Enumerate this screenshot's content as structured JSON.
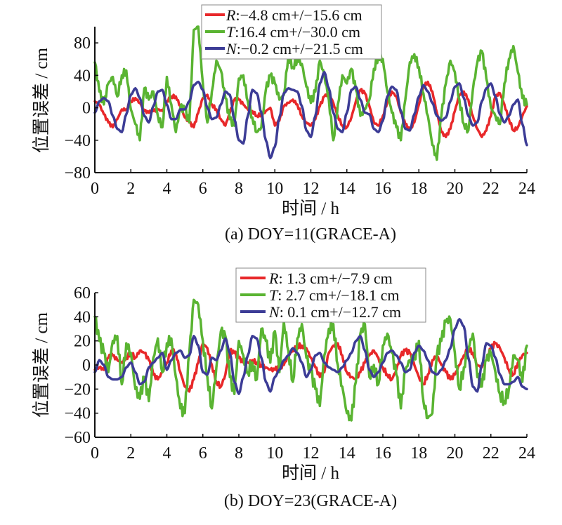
{
  "chart_data": [
    {
      "id": "a",
      "type": "line",
      "caption": "(a) DOY=11(GRACE-A)",
      "xlabel": "时间 / h",
      "ylabel": "位置误差 / cm",
      "xlim": [
        0,
        24
      ],
      "ylim": [
        -80,
        100
      ],
      "xticks": [
        "0",
        "2",
        "4",
        "6",
        "8",
        "10",
        "12",
        "14",
        "16",
        "18",
        "20",
        "22",
        "24"
      ],
      "xtick_values": [
        0,
        2,
        4,
        6,
        8,
        10,
        12,
        14,
        16,
        18,
        20,
        22,
        24
      ],
      "yticks": [
        "−80",
        "−40",
        "0",
        "40",
        "80"
      ],
      "ytick_values": [
        -80,
        -40,
        0,
        40,
        80
      ],
      "grid": false,
      "legend_position": "top-center",
      "x": [
        0,
        0.25,
        0.5,
        0.75,
        1,
        1.25,
        1.5,
        1.75,
        2,
        2.25,
        2.5,
        2.75,
        3,
        3.25,
        3.5,
        3.75,
        4,
        4.25,
        4.5,
        4.75,
        5,
        5.25,
        5.5,
        5.75,
        6,
        6.25,
        6.5,
        6.75,
        7,
        7.25,
        7.5,
        7.75,
        8,
        8.25,
        8.5,
        8.75,
        9,
        9.25,
        9.5,
        9.75,
        10,
        10.25,
        10.5,
        10.75,
        11,
        11.25,
        11.5,
        11.75,
        12,
        12.25,
        12.5,
        12.75,
        13,
        13.25,
        13.5,
        13.75,
        14,
        14.25,
        14.5,
        14.75,
        15,
        15.25,
        15.5,
        15.75,
        16,
        16.25,
        16.5,
        16.75,
        17,
        17.25,
        17.5,
        17.75,
        18,
        18.25,
        18.5,
        18.75,
        19,
        19.25,
        19.5,
        19.75,
        20,
        20.25,
        20.5,
        20.75,
        21,
        21.25,
        21.5,
        21.75,
        22,
        22.25,
        22.5,
        22.75,
        23,
        23.25,
        23.5,
        23.75,
        24
      ],
      "series": [
        {
          "name": "R",
          "legend_var": "R",
          "legend_text": ":−4.8 cm+/−15.6 cm",
          "color": "#e8282a",
          "values": [
            8,
            4,
            -8,
            -18,
            -24,
            -14,
            -2,
            -2,
            8,
            12,
            6,
            -4,
            -6,
            -4,
            -2,
            -4,
            8,
            14,
            14,
            2,
            -12,
            -18,
            -24,
            -6,
            12,
            16,
            4,
            -2,
            -14,
            -22,
            -6,
            10,
            10,
            4,
            -2,
            -4,
            -10,
            -8,
            -4,
            0,
            -22,
            -16,
            2,
            6,
            10,
            4,
            -10,
            -18,
            -22,
            -14,
            2,
            14,
            18,
            6,
            -10,
            -22,
            -24,
            -12,
            8,
            22,
            18,
            2,
            -18,
            -22,
            -10,
            8,
            20,
            14,
            -6,
            -20,
            -28,
            -18,
            4,
            26,
            32,
            20,
            -6,
            -30,
            -36,
            -26,
            -4,
            16,
            20,
            10,
            -10,
            -26,
            -36,
            -28,
            -10,
            14,
            18,
            4,
            -14,
            -28,
            -24,
            -10,
            2,
            8,
            -4,
            -12
          ]
        },
        {
          "name": "T",
          "legend_var": "T",
          "legend_text": ":16.4 cm+/−30.0 cm",
          "color": "#5ab432",
          "values": [
            56,
            20,
            4,
            30,
            38,
            14,
            40,
            46,
            -2,
            -20,
            -40,
            24,
            10,
            20,
            -10,
            -24,
            38,
            4,
            -30,
            0,
            -2,
            -18,
            96,
            100,
            30,
            -18,
            20,
            58,
            46,
            12,
            -14,
            -22,
            36,
            40,
            8,
            -12,
            -30,
            -24,
            22,
            40,
            30,
            10,
            16,
            64,
            50,
            60,
            54,
            26,
            6,
            20,
            58,
            40,
            10,
            -40,
            4,
            40,
            30,
            48,
            22,
            -10,
            -2,
            10,
            48,
            64,
            60,
            20,
            -6,
            -24,
            -40,
            10,
            56,
            66,
            50,
            18,
            -10,
            -46,
            -64,
            -10,
            30,
            58,
            44,
            10,
            -20,
            -28,
            22,
            56,
            70,
            36,
            0,
            -10,
            -20,
            30,
            60,
            76,
            44,
            12,
            4,
            12
          ]
        },
        {
          "name": "N",
          "legend_var": "N",
          "legend_text": ":−0.2 cm+/−21.5 cm",
          "color": "#3c3c96",
          "values": [
            -6,
            8,
            12,
            8,
            -10,
            -26,
            -30,
            -8,
            16,
            24,
            12,
            -10,
            -18,
            2,
            20,
            22,
            4,
            -14,
            -14,
            -2,
            -2,
            8,
            28,
            32,
            22,
            0,
            -14,
            -12,
            4,
            20,
            16,
            -14,
            -40,
            -44,
            -10,
            22,
            18,
            -6,
            -40,
            -62,
            -48,
            -12,
            18,
            24,
            22,
            20,
            2,
            -28,
            -36,
            -10,
            30,
            44,
            24,
            -6,
            -26,
            -30,
            -6,
            22,
            26,
            10,
            -6,
            -8,
            -26,
            -30,
            -16,
            14,
            26,
            22,
            -4,
            -26,
            -28,
            -8,
            14,
            28,
            20,
            6,
            -10,
            -16,
            -12,
            8,
            26,
            30,
            12,
            -10,
            -22,
            -18,
            8,
            24,
            30,
            14,
            -8,
            -18,
            -10,
            4,
            10,
            -20,
            -46,
            -30,
            -10
          ]
        }
      ]
    },
    {
      "id": "b",
      "type": "line",
      "caption": "(b) DOY=23(GRACE-A)",
      "xlabel": "时间 / h",
      "ylabel": "位置误差 / cm",
      "xlim": [
        0,
        24
      ],
      "ylim": [
        -60,
        60
      ],
      "xticks": [
        "0",
        "2",
        "4",
        "6",
        "8",
        "10",
        "12",
        "14",
        "16",
        "18",
        "20",
        "22",
        "24"
      ],
      "xtick_values": [
        0,
        2,
        4,
        6,
        8,
        10,
        12,
        14,
        16,
        18,
        20,
        22,
        24
      ],
      "yticks": [
        "−60",
        "−40",
        "−20",
        "0",
        "20",
        "40",
        "60"
      ],
      "ytick_values": [
        -60,
        -40,
        -20,
        0,
        20,
        40,
        60
      ],
      "grid": false,
      "legend_position": "top-center",
      "x": [
        0,
        0.25,
        0.5,
        0.75,
        1,
        1.25,
        1.5,
        1.75,
        2,
        2.25,
        2.5,
        2.75,
        3,
        3.25,
        3.5,
        3.75,
        4,
        4.25,
        4.5,
        4.75,
        5,
        5.25,
        5.5,
        5.75,
        6,
        6.25,
        6.5,
        6.75,
        7,
        7.25,
        7.5,
        7.75,
        8,
        8.25,
        8.5,
        8.75,
        9,
        9.25,
        9.5,
        9.75,
        10,
        10.25,
        10.5,
        10.75,
        11,
        11.25,
        11.5,
        11.75,
        12,
        12.25,
        12.5,
        12.75,
        13,
        13.25,
        13.5,
        13.75,
        14,
        14.25,
        14.5,
        14.75,
        15,
        15.25,
        15.5,
        15.75,
        16,
        16.25,
        16.5,
        16.75,
        17,
        17.25,
        17.5,
        17.75,
        18,
        18.25,
        18.5,
        18.75,
        19,
        19.25,
        19.5,
        19.75,
        20,
        20.25,
        20.5,
        20.75,
        21,
        21.25,
        21.5,
        21.75,
        22,
        22.25,
        22.5,
        22.75,
        23,
        23.25,
        23.5,
        23.75,
        24
      ],
      "series": [
        {
          "name": "R",
          "legend_var": "R",
          "legend_text": ": 1.3 cm+/−7.9 cm",
          "color": "#e8282a",
          "values": [
            -4,
            -2,
            -4,
            6,
            8,
            4,
            2,
            6,
            10,
            6,
            12,
            10,
            4,
            -8,
            -12,
            -6,
            2,
            12,
            10,
            -6,
            -18,
            -22,
            -12,
            2,
            18,
            14,
            0,
            -14,
            -18,
            -8,
            12,
            10,
            6,
            2,
            2,
            4,
            2,
            0,
            -2,
            -4,
            -4,
            -2,
            0,
            8,
            12,
            16,
            16,
            14,
            6,
            -2,
            -10,
            -6,
            10,
            16,
            18,
            8,
            -6,
            -10,
            -12,
            -6,
            2,
            8,
            12,
            6,
            -2,
            -8,
            -12,
            -4,
            8,
            12,
            10,
            0,
            -10,
            -16,
            -8,
            4,
            8,
            0,
            -6,
            -12,
            -8,
            0,
            8,
            14,
            10,
            0,
            -2,
            4,
            14,
            18,
            14,
            6,
            -4,
            -8,
            2,
            8,
            10,
            6,
            -2
          ]
        },
        {
          "name": "T",
          "legend_var": "T",
          "legend_text": ": 2.7 cm+/−18.1 cm",
          "color": "#5ab432",
          "values": [
            40,
            20,
            10,
            -6,
            20,
            24,
            -16,
            18,
            10,
            -20,
            -28,
            -10,
            -30,
            6,
            22,
            -6,
            18,
            22,
            -10,
            -36,
            -40,
            10,
            54,
            50,
            20,
            -10,
            -36,
            -2,
            28,
            24,
            -10,
            -24,
            20,
            8,
            -6,
            2,
            -12,
            30,
            20,
            2,
            28,
            -6,
            36,
            12,
            -14,
            22,
            34,
            6,
            -6,
            -20,
            -34,
            8,
            30,
            34,
            0,
            -18,
            -40,
            -46,
            -14,
            26,
            34,
            -10,
            0,
            -16,
            16,
            26,
            10,
            -8,
            -36,
            -4,
            4,
            6,
            20,
            -30,
            -44,
            -40,
            8,
            20,
            36,
            38,
            10,
            -20,
            -2,
            14,
            26,
            -10,
            -18,
            4,
            10,
            -6,
            -24,
            -30,
            -20,
            8,
            4,
            -14,
            16,
            20
          ]
        },
        {
          "name": "N",
          "legend_var": "N",
          "legend_text": ": 0.1 cm+/−12.7 cm",
          "color": "#3c3c96",
          "values": [
            -6,
            4,
            0,
            -10,
            -12,
            -12,
            -10,
            -2,
            2,
            -6,
            -16,
            -14,
            -2,
            2,
            6,
            10,
            -4,
            4,
            10,
            12,
            6,
            8,
            24,
            16,
            -6,
            -8,
            6,
            4,
            12,
            22,
            10,
            -14,
            -24,
            -10,
            8,
            24,
            22,
            6,
            -14,
            -22,
            -10,
            -4,
            4,
            8,
            14,
            10,
            2,
            -10,
            -4,
            8,
            10,
            2,
            -2,
            -4,
            -6,
            -2,
            4,
            10,
            20,
            24,
            12,
            -4,
            -10,
            -6,
            2,
            10,
            12,
            8,
            2,
            -6,
            -4,
            10,
            16,
            12,
            4,
            -6,
            -8,
            -4,
            4,
            14,
            30,
            38,
            32,
            6,
            -18,
            -22,
            0,
            18,
            16,
            6,
            -8,
            -16,
            -16,
            -14,
            -10,
            -18,
            -20,
            -12,
            -6,
            -4
          ]
        }
      ]
    }
  ]
}
